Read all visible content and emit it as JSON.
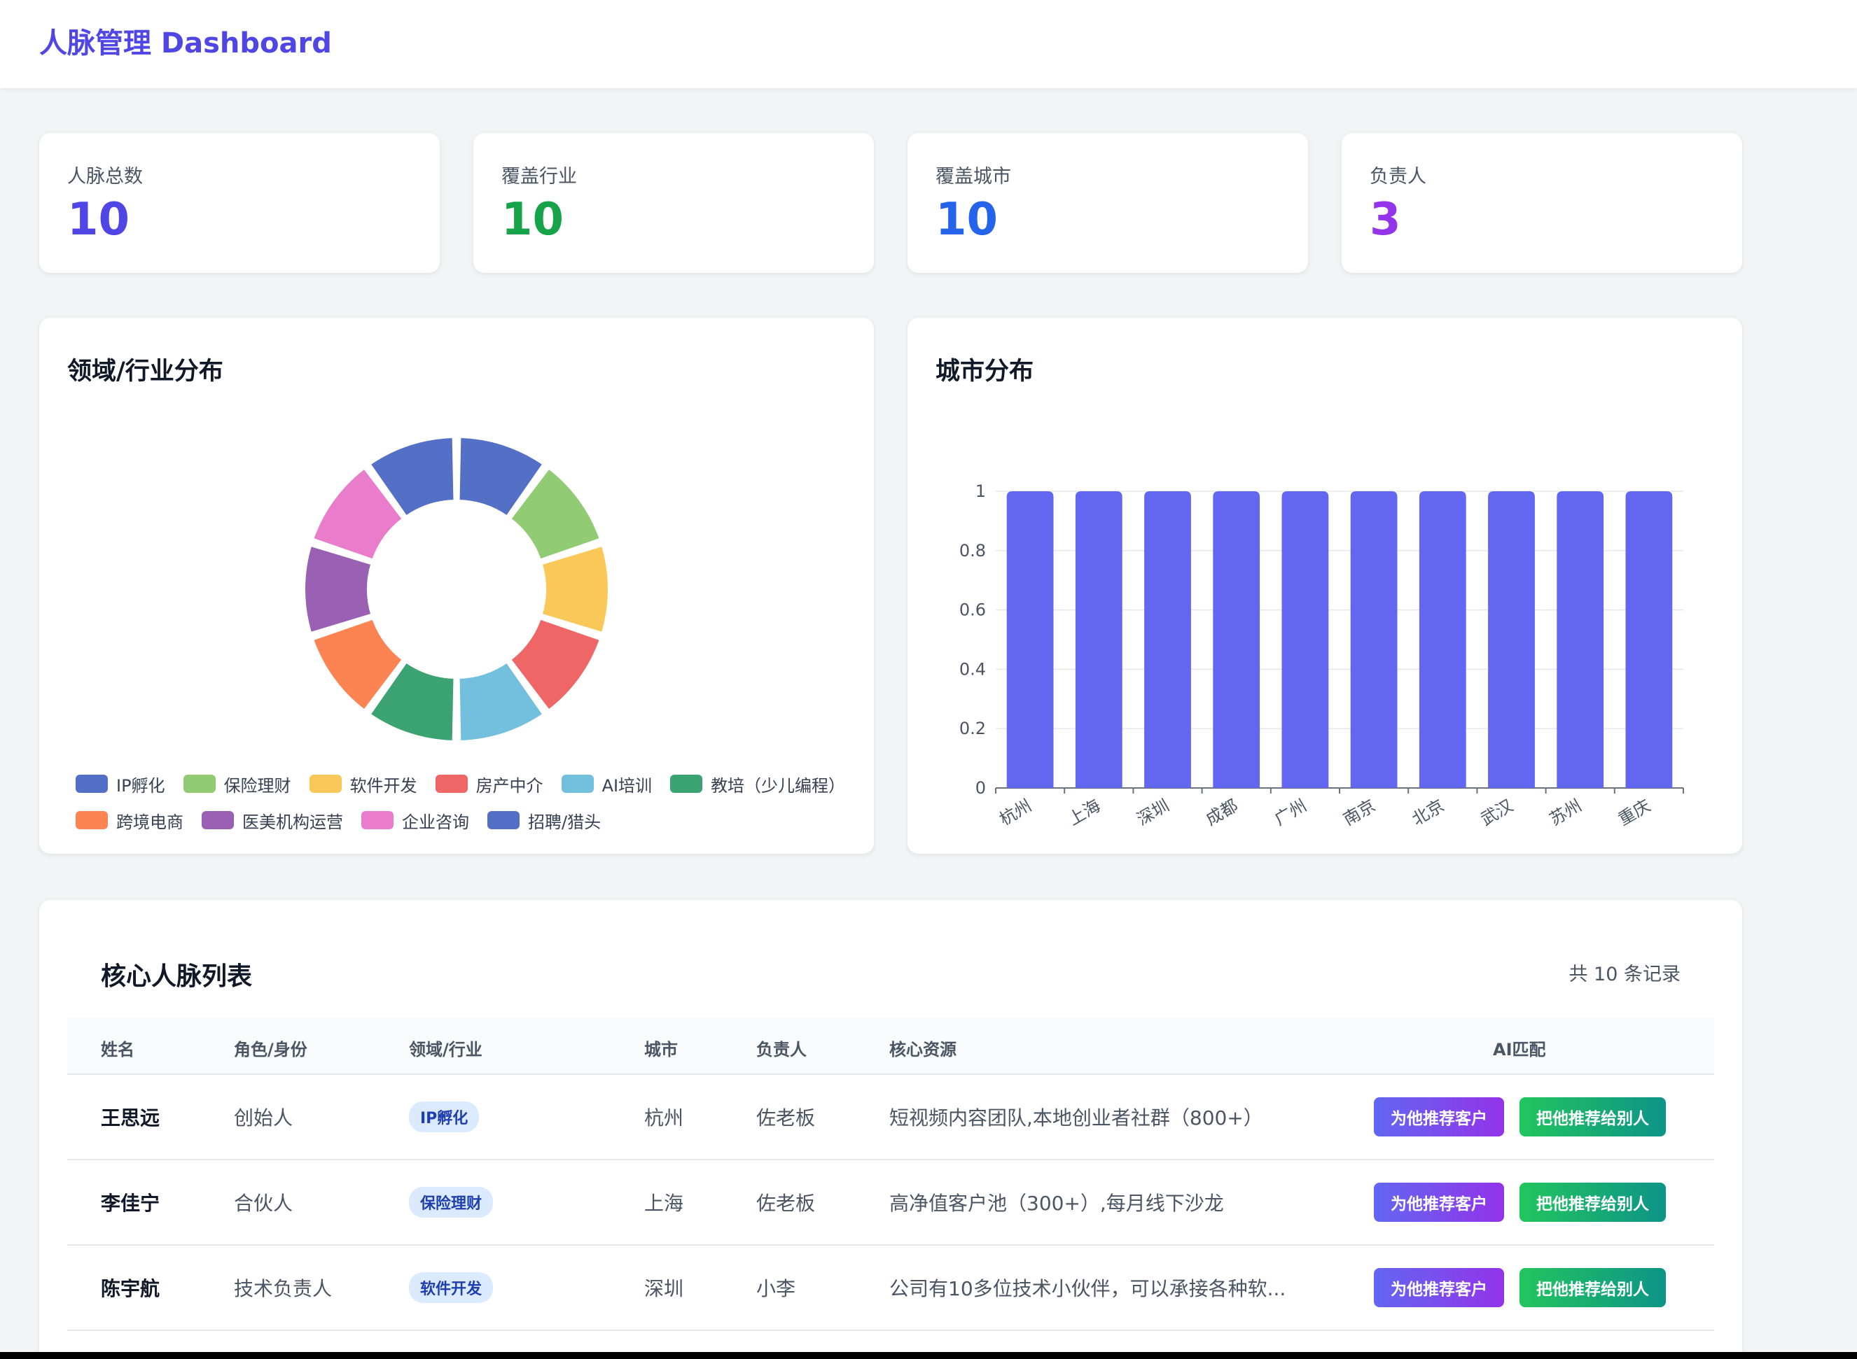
{
  "header": {
    "title": "人脉管理 Dashboard"
  },
  "stats": [
    {
      "label": "人脉总数",
      "value": "10",
      "color": "#4f46e5"
    },
    {
      "label": "覆盖行业",
      "value": "10",
      "color": "#16a34a"
    },
    {
      "label": "覆盖城市",
      "value": "10",
      "color": "#2563eb"
    },
    {
      "label": "负责人",
      "value": "3",
      "color": "#9333ea"
    }
  ],
  "chart_data": [
    {
      "type": "pie",
      "title": "领域/行业分布",
      "categories": [
        "IP孵化",
        "保险理财",
        "软件开发",
        "房产中介",
        "AI培训",
        "教培（少儿编程）",
        "跨境电商",
        "医美机构运营",
        "企业咨询",
        "招聘/猎头"
      ],
      "values": [
        1,
        1,
        1,
        1,
        1,
        1,
        1,
        1,
        1,
        1
      ],
      "colors": [
        "#5470c6",
        "#91cc75",
        "#fac858",
        "#ee6666",
        "#73c0de",
        "#3ba272",
        "#fc8452",
        "#9a60b4",
        "#ea7ccc",
        "#5470c6"
      ],
      "legend": "bottom"
    },
    {
      "type": "bar",
      "title": "城市分布",
      "categories": [
        "杭州",
        "上海",
        "深圳",
        "成都",
        "广州",
        "南京",
        "北京",
        "武汉",
        "苏州",
        "重庆"
      ],
      "values": [
        1,
        1,
        1,
        1,
        1,
        1,
        1,
        1,
        1,
        1
      ],
      "yticks": [
        "0",
        "0.2",
        "0.4",
        "0.6",
        "0.8",
        "1"
      ],
      "ylim": [
        0,
        1
      ],
      "color": "#6366f1",
      "grid": true
    }
  ],
  "table": {
    "title": "核心人脉列表",
    "count": "共 10 条记录",
    "headers": [
      "姓名",
      "角色/身份",
      "领域/行业",
      "城市",
      "负责人",
      "核心资源",
      "AI匹配"
    ],
    "rows": [
      {
        "name": "王思远",
        "role": "创始人",
        "domain": "IP孵化",
        "city": "杭州",
        "owner": "佐老板",
        "resource": "短视频内容团队,本地创业者社群（800+）"
      },
      {
        "name": "李佳宁",
        "role": "合伙人",
        "domain": "保险理财",
        "city": "上海",
        "owner": "佐老板",
        "resource": "高净值客户池（300+）,每月线下沙龙"
      },
      {
        "name": "陈宇航",
        "role": "技术负责人",
        "domain": "软件开发",
        "city": "深圳",
        "owner": "小李",
        "resource": "公司有10多位技术小伙伴，可以承接各种软..."
      }
    ],
    "btn_recommend_client": "为他推荐客户",
    "btn_recommend_him": "把他推荐给别人"
  }
}
